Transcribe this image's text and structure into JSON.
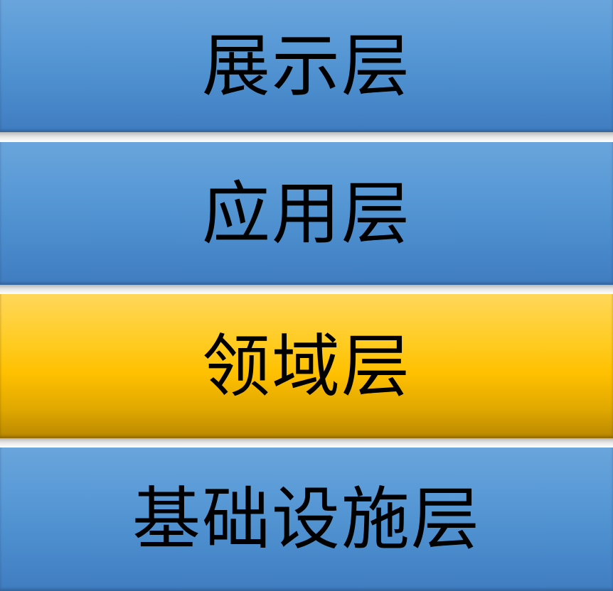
{
  "layers": [
    {
      "label": "展示层",
      "color": "#4a8bcc",
      "highlighted": false
    },
    {
      "label": "应用层",
      "color": "#4a8bcc",
      "highlighted": false
    },
    {
      "label": "领域层",
      "color": "#ffc000",
      "highlighted": true
    },
    {
      "label": "基础设施层",
      "color": "#4a8bcc",
      "highlighted": false
    }
  ]
}
